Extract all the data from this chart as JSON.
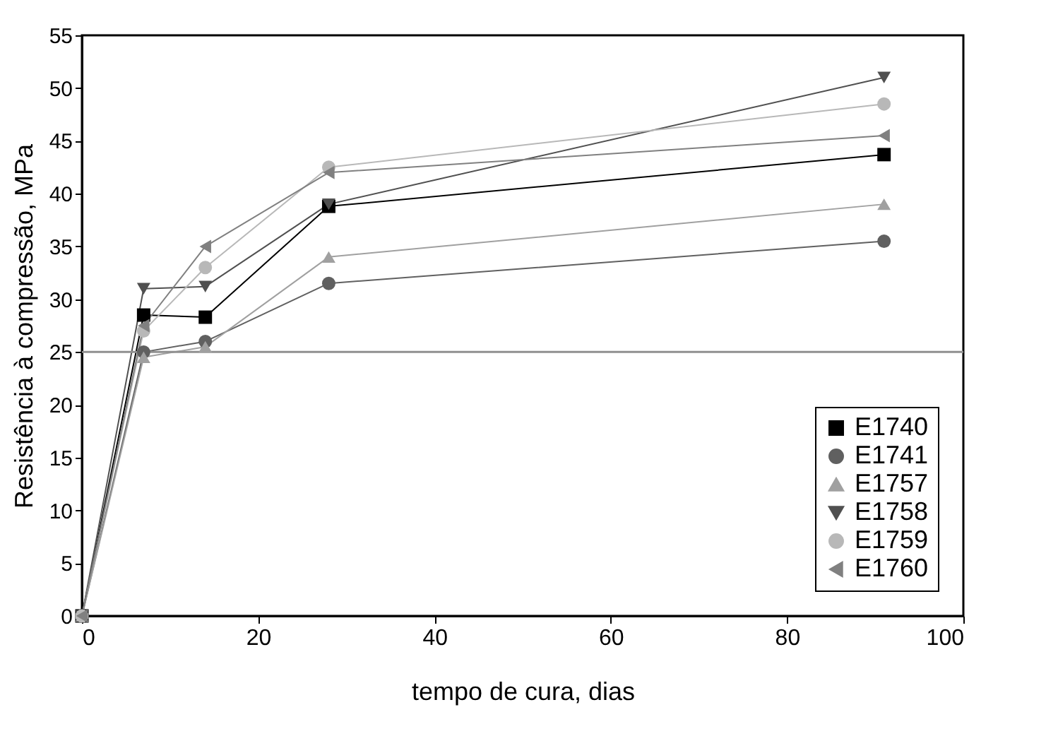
{
  "chart_data": {
    "type": "line",
    "xlabel": "tempo de cura, dias",
    "ylabel": "Resistência à compressão, MPa",
    "x": [
      0,
      7,
      14,
      28,
      91
    ],
    "series": [
      {
        "name": "E1740",
        "color": "#000000",
        "marker": "square",
        "values": [
          0,
          28.5,
          28.3,
          38.8,
          43.7
        ]
      },
      {
        "name": "E1741",
        "color": "#606060",
        "marker": "circle",
        "values": [
          0,
          25,
          26,
          31.5,
          35.5
        ]
      },
      {
        "name": "E1757",
        "color": "#a0a0a0",
        "marker": "triangle-up",
        "values": [
          0,
          24.5,
          25.5,
          34,
          39
        ]
      },
      {
        "name": "E1758",
        "color": "#505050",
        "marker": "triangle-down",
        "values": [
          0,
          31,
          31.2,
          39,
          51
        ]
      },
      {
        "name": "E1759",
        "color": "#b8b8b8",
        "marker": "circle",
        "values": [
          0,
          27,
          33,
          42.5,
          48.5
        ]
      },
      {
        "name": "E1760",
        "color": "#808080",
        "marker": "triangle-left",
        "values": [
          0,
          27.5,
          35,
          42,
          45.5
        ]
      }
    ],
    "xlim": [
      0,
      100
    ],
    "xticks": [
      0,
      20,
      40,
      60,
      80,
      100
    ],
    "ylim": [
      0,
      55
    ],
    "yticks": [
      0,
      5,
      10,
      15,
      20,
      25,
      30,
      35,
      40,
      45,
      50,
      55
    ],
    "ref_lines": [
      {
        "axis": "y",
        "value": 25,
        "color": "#909090"
      }
    ],
    "grid": false,
    "legend": "bottom right"
  }
}
